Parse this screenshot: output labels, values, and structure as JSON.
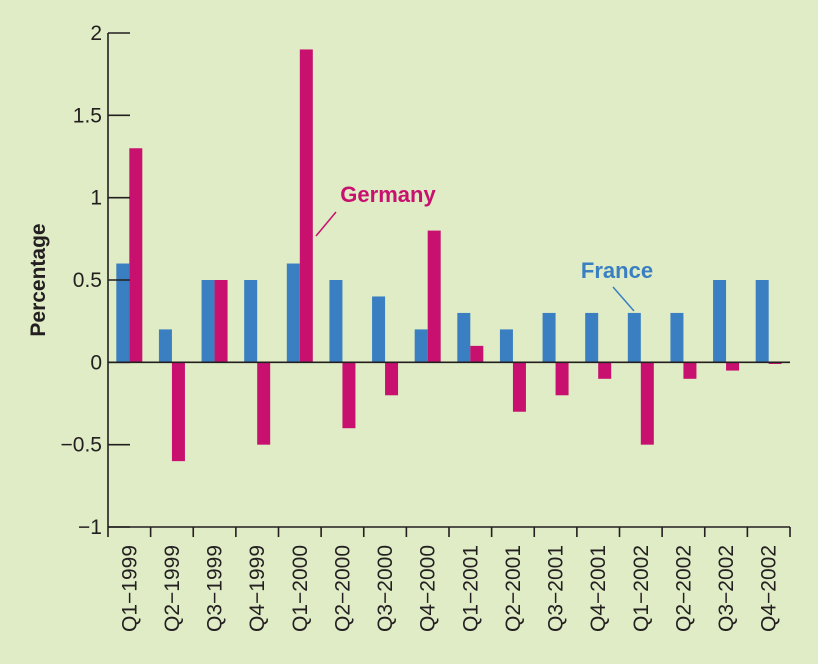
{
  "chart_data": {
    "type": "bar",
    "ylabel": "Percentage",
    "xlabel": "",
    "ylim": [
      -1,
      2
    ],
    "yticks": [
      -1,
      -0.5,
      0,
      0.5,
      1,
      1.5,
      2
    ],
    "ytick_labels": [
      "−1",
      "−0.5",
      "0",
      "0.5",
      "1",
      "1.5",
      "2"
    ],
    "categories": [
      "Q1−1999",
      "Q2−1999",
      "Q3−1999",
      "Q4−1999",
      "Q1−2000",
      "Q2−2000",
      "Q3−2000",
      "Q4−2000",
      "Q1−2001",
      "Q2−2001",
      "Q3−2001",
      "Q4−2001",
      "Q1−2002",
      "Q2−2002",
      "Q3−2002",
      "Q4−2002"
    ],
    "series": [
      {
        "name": "France",
        "color": "#3a7fc1",
        "values": [
          0.6,
          0.2,
          0.5,
          0.5,
          0.6,
          0.5,
          0.4,
          0.2,
          0.3,
          0.2,
          0.3,
          0.3,
          0.3,
          0.3,
          0.5,
          0.5
        ]
      },
      {
        "name": "Germany",
        "color": "#c8106e",
        "values": [
          1.3,
          -0.6,
          0.5,
          -0.5,
          1.9,
          -0.4,
          -0.2,
          0.8,
          0.1,
          -0.3,
          -0.2,
          -0.1,
          -0.5,
          -0.1,
          -0.05,
          -0.01
        ]
      }
    ],
    "grid": false,
    "legend": "inline labels"
  }
}
